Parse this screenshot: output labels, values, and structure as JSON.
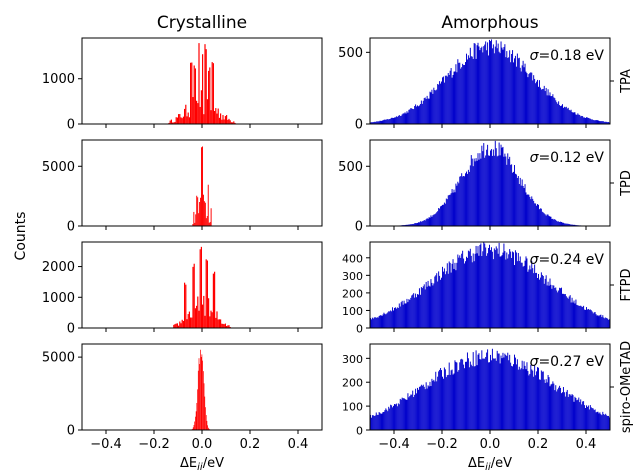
{
  "figure": {
    "colors": {
      "crystalline": "#ff0000",
      "amorphous": "#0000cc"
    },
    "common_ylabel": "Counts"
  },
  "chart_data": [
    {
      "type": "histogram",
      "title": "Crystalline",
      "material": "TPA",
      "xlabel": "",
      "xlim": [
        -0.5,
        0.5
      ],
      "ylim": [
        0,
        1900
      ],
      "xticks": [
        -0.4,
        -0.2,
        0.0,
        0.2,
        0.4
      ],
      "yticks": [
        0,
        1000
      ],
      "ytick_labels": [
        "0",
        "1000"
      ],
      "show_xtick_labels": false,
      "color": "#ff0000",
      "profile": {
        "kind": "spiky",
        "center": 0.0,
        "halfwidth": 0.14,
        "peak": 1800,
        "peaks": [
          [
            -0.012,
            1800
          ],
          [
            0.015,
            1780
          ],
          [
            0.004,
            1550
          ],
          [
            -0.045,
            1450
          ],
          [
            0.045,
            1400
          ],
          [
            -0.03,
            1300
          ],
          [
            0.03,
            1250
          ]
        ],
        "bin": 0.005
      }
    },
    {
      "type": "histogram",
      "title": "Amorphous",
      "material": "TPA",
      "annotation": "σ=0.18 eV",
      "xlabel": "",
      "xlim": [
        -0.5,
        0.5
      ],
      "ylim": [
        0,
        600
      ],
      "xticks": [
        -0.4,
        -0.2,
        0.0,
        0.2,
        0.4
      ],
      "yticks": [
        0,
        500
      ],
      "ytick_labels": [
        "0",
        "500"
      ],
      "show_xtick_labels": false,
      "color": "#0000cc",
      "profile": {
        "kind": "gauss",
        "center": 0.0,
        "sigma": 0.18,
        "peak": 540,
        "bin": 0.004
      }
    },
    {
      "type": "histogram",
      "material": "TPD",
      "xlabel": "",
      "xlim": [
        -0.5,
        0.5
      ],
      "ylim": [
        0,
        7200
      ],
      "xticks": [
        -0.4,
        -0.2,
        0.0,
        0.2,
        0.4
      ],
      "yticks": [
        0,
        5000
      ],
      "ytick_labels": [
        "0",
        "5000"
      ],
      "show_xtick_labels": false,
      "color": "#ff0000",
      "profile": {
        "kind": "spiky",
        "center": 0.0,
        "halfwidth": 0.04,
        "peak": 6900,
        "peaks": [
          [
            0.0,
            6900
          ],
          [
            -0.02,
            2600
          ],
          [
            0.025,
            3700
          ],
          [
            -0.035,
            1200
          ],
          [
            0.04,
            1500
          ]
        ],
        "bin": 0.004
      }
    },
    {
      "type": "histogram",
      "material": "TPD",
      "annotation": "σ=0.12 eV",
      "xlabel": "",
      "xlim": [
        -0.5,
        0.5
      ],
      "ylim": [
        0,
        720
      ],
      "xticks": [
        -0.4,
        -0.2,
        0.0,
        0.2,
        0.4
      ],
      "yticks": [
        0,
        500
      ],
      "ytick_labels": [
        "0",
        "500"
      ],
      "show_xtick_labels": false,
      "color": "#0000cc",
      "profile": {
        "kind": "gauss",
        "center": 0.0,
        "sigma": 0.12,
        "peak": 660,
        "bin": 0.004
      }
    },
    {
      "type": "histogram",
      "material": "FTPD",
      "xlabel": "",
      "xlim": [
        -0.5,
        0.5
      ],
      "ylim": [
        0,
        2800
      ],
      "xticks": [
        -0.4,
        -0.2,
        0.0,
        0.2,
        0.4
      ],
      "yticks": [
        0,
        1000,
        2000
      ],
      "ytick_labels": [
        "0",
        "1000",
        "2000"
      ],
      "show_xtick_labels": false,
      "color": "#ff0000",
      "profile": {
        "kind": "spiky",
        "center": 0.0,
        "halfwidth": 0.12,
        "peak": 2650,
        "peaks": [
          [
            -0.005,
            2650
          ],
          [
            0.02,
            2300
          ],
          [
            -0.035,
            2100
          ],
          [
            0.05,
            1850
          ],
          [
            -0.07,
            1500
          ]
        ],
        "bin": 0.005
      }
    },
    {
      "type": "histogram",
      "material": "FTPD",
      "annotation": "σ=0.24 eV",
      "xlabel": "",
      "xlim": [
        -0.5,
        0.5
      ],
      "ylim": [
        0,
        490
      ],
      "xticks": [
        -0.4,
        -0.2,
        0.0,
        0.2,
        0.4
      ],
      "yticks": [
        0,
        100,
        200,
        300,
        400
      ],
      "ytick_labels": [
        "0",
        "100",
        "200",
        "300",
        "400"
      ],
      "show_xtick_labels": false,
      "color": "#0000cc",
      "profile": {
        "kind": "gauss",
        "center": 0.0,
        "sigma": 0.24,
        "peak": 445,
        "bin": 0.004
      }
    },
    {
      "type": "histogram",
      "material": "spiro-OMeTAD",
      "xlabel": "ΔE_ii/eV",
      "xlim": [
        -0.5,
        0.5
      ],
      "ylim": [
        0,
        5900
      ],
      "xticks": [
        -0.4,
        -0.2,
        0.0,
        0.2,
        0.4
      ],
      "xtick_labels": [
        "−0.4",
        "−0.2",
        "0.0",
        "0.2",
        "0.4"
      ],
      "yticks": [
        0,
        5000
      ],
      "ytick_labels": [
        "0",
        "5000"
      ],
      "show_xtick_labels": true,
      "color": "#ff0000",
      "profile": {
        "kind": "gauss",
        "center": -0.005,
        "sigma": 0.012,
        "peak": 5400,
        "bin": 0.003
      }
    },
    {
      "type": "histogram",
      "material": "spiro-OMeTAD",
      "annotation": "σ=0.27 eV",
      "xlabel": "ΔE_ii/eV",
      "xlim": [
        -0.5,
        0.5
      ],
      "ylim": [
        0,
        360
      ],
      "xticks": [
        -0.4,
        -0.2,
        0.0,
        0.2,
        0.4
      ],
      "xtick_labels": [
        "−0.4",
        "−0.2",
        "0.0",
        "0.2",
        "0.4"
      ],
      "yticks": [
        0,
        100,
        200,
        300
      ],
      "ytick_labels": [
        "0",
        "100",
        "200",
        "300"
      ],
      "show_xtick_labels": true,
      "color": "#0000cc",
      "profile": {
        "kind": "gauss",
        "center": 0.0,
        "sigma": 0.27,
        "peak": 310,
        "bin": 0.004
      }
    }
  ]
}
